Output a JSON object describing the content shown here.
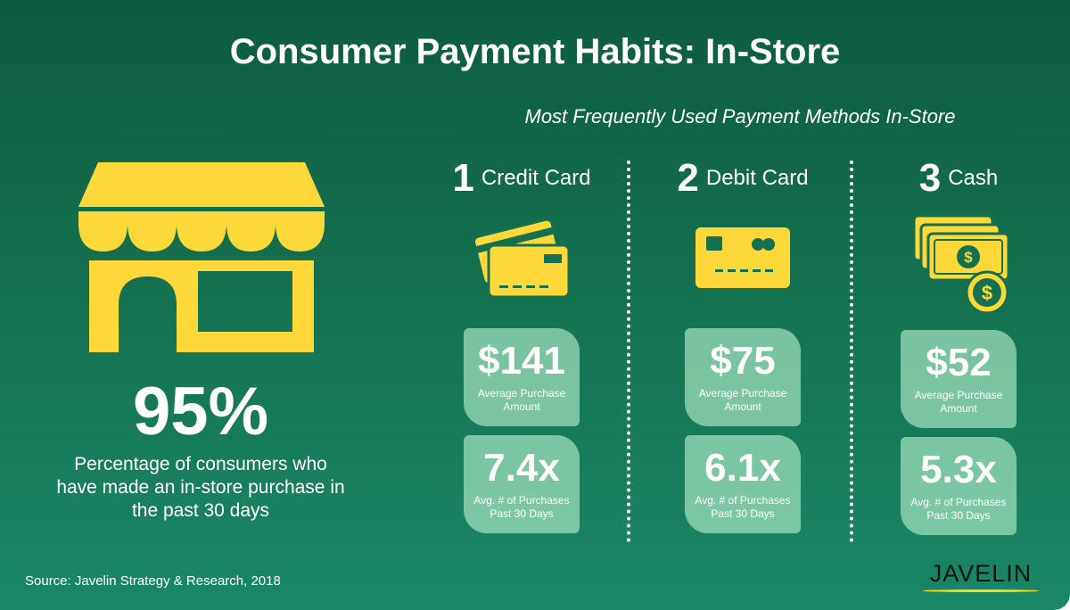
{
  "title": "Consumer Payment Habits: In-Store",
  "subtitle": "Most Frequently Used Payment Methods In-Store",
  "headline": {
    "value": "95%",
    "description": "Percentage of consumers who have made an in-store purchase in the past 30 days",
    "icon": "storefront-icon"
  },
  "methods": [
    {
      "rank": "1",
      "name": "Credit Card",
      "icon": "credit-cards-icon",
      "amount": "$141",
      "amount_label": "Average Purchase Amount",
      "frequency": "7.4x",
      "frequency_label": "Avg. # of Purchases Past 30 Days"
    },
    {
      "rank": "2",
      "name": "Debit Card",
      "icon": "debit-card-icon",
      "amount": "$75",
      "amount_label": "Average Purchase Amount",
      "frequency": "6.1x",
      "frequency_label": "Avg. # of Purchases Past 30 Days"
    },
    {
      "rank": "3",
      "name": "Cash",
      "icon": "cash-icon",
      "amount": "$52",
      "amount_label": "Average Purchase Amount",
      "frequency": "5.3x",
      "frequency_label": "Avg. # of Purchases Past 30 Days"
    }
  ],
  "source": "Source: Javelin Strategy & Research, 2018",
  "logo": "JAVELIN",
  "colors": {
    "accent": "#fcd838",
    "background_top": "#0e5c40",
    "background_bottom": "#1a8767",
    "card": "#8fd2ae"
  }
}
